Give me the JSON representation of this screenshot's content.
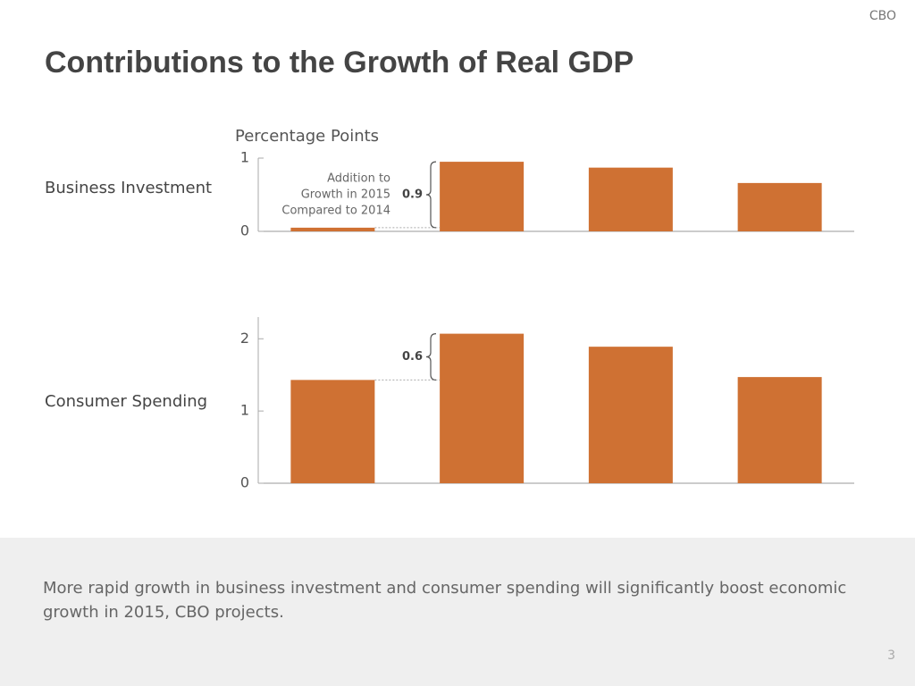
{
  "header": {
    "source": "CBO",
    "title": "Contributions to the Growth of Real GDP"
  },
  "chart_data": [
    {
      "type": "bar",
      "axis_label": "Percentage Points",
      "row_label": "Business Investment",
      "values": [
        0.05,
        0.95,
        0.87,
        0.66
      ],
      "color": "#cf7133",
      "ylim": [
        0,
        1
      ],
      "yticks": [
        0,
        1
      ],
      "annotation": [
        "Addition to",
        "Growth in 2015",
        "Compared to 2014"
      ],
      "brace_label": "0.9"
    },
    {
      "type": "bar",
      "row_label": "Consumer Spending",
      "values": [
        1.43,
        2.07,
        1.89,
        1.47
      ],
      "color": "#cf7133",
      "ylim": [
        0,
        2.3
      ],
      "yticks": [
        0,
        1,
        2
      ],
      "brace_label": "0.6"
    }
  ],
  "footer": {
    "text": "More rapid growth in business investment and consumer spending will significantly boost economic growth in 2015, CBO projects.",
    "page": "3"
  }
}
